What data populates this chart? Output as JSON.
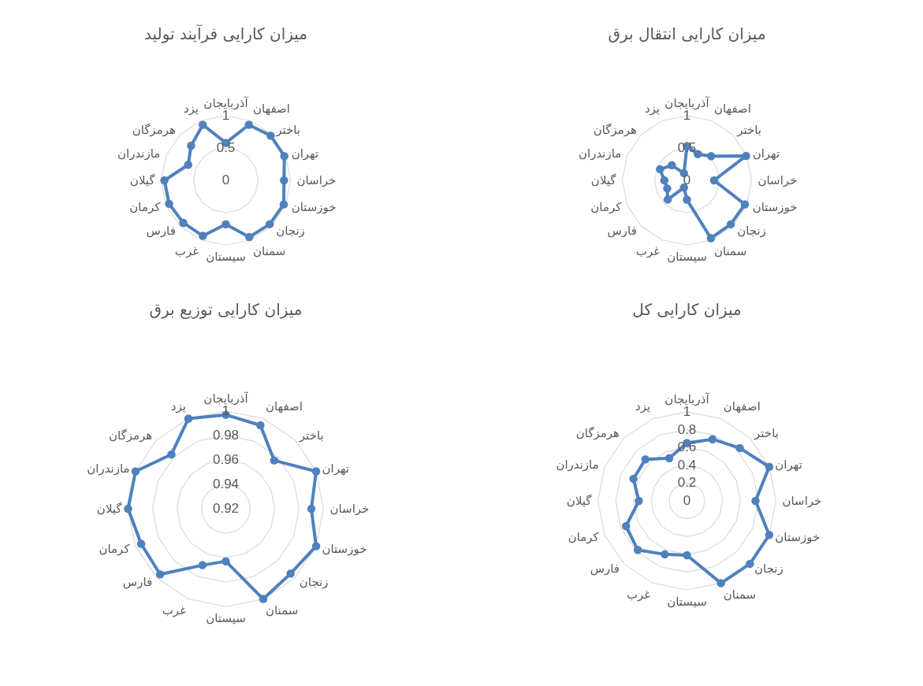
{
  "chart_data": [
    {
      "type": "radar",
      "title": "میزان کارایی فرآیند تولید",
      "categories": [
        "آذربایجان",
        "اصفهان",
        "باختر",
        "تهران",
        "خراسان",
        "خوزستان",
        "زنجان",
        "سمنان",
        "سیستان",
        "غرب",
        "فارس",
        "کرمان",
        "گیلان",
        "مازندران",
        "هرمزگان",
        "یزد"
      ],
      "series": [
        {
          "color": "#4f81bd",
          "values": [
            0.58,
            0.93,
            0.98,
            0.98,
            0.9,
            0.97,
            0.96,
            0.95,
            0.68,
            0.93,
            0.93,
            0.95,
            0.95,
            0.63,
            0.76,
            0.93
          ]
        }
      ],
      "ylim": [
        0,
        1
      ],
      "yticks": [
        0,
        0.5,
        1
      ],
      "grid": true,
      "marker": "circle"
    },
    {
      "type": "radar",
      "title": "میزان کارایی انتقال برق",
      "categories": [
        "آذربایجان",
        "اصفهان",
        "باختر",
        "تهران",
        "خراسان",
        "خوزستان",
        "زنجان",
        "سمنان",
        "سیستان",
        "غرب",
        "فارس",
        "کرمان",
        "گیلان",
        "مازندران",
        "هرمزگان",
        "یزد"
      ],
      "series": [
        {
          "color": "#4f81bd",
          "values": [
            0.53,
            0.44,
            0.53,
            0.99,
            0.42,
            0.97,
            0.96,
            0.97,
            0.3,
            0.12,
            0.42,
            0.33,
            0.35,
            0.45,
            0.33,
            0.12
          ]
        }
      ],
      "ylim": [
        0,
        1
      ],
      "yticks": [
        0,
        0.5,
        1
      ],
      "grid": true,
      "marker": "circle"
    },
    {
      "type": "radar",
      "title": "میزان کارایی توزیع برق",
      "categories": [
        "آذربایجان",
        "اصفهان",
        "باختر",
        "تهران",
        "خراسان",
        "خوزستان",
        "زنجان",
        "سمنان",
        "سیستان",
        "غرب",
        "فارس",
        "کرمان",
        "گیلان",
        "مازندران",
        "هرمزگان",
        "یزد"
      ],
      "series": [
        {
          "color": "#4f81bd",
          "values": [
            0.997,
            0.994,
            0.976,
            1,
            0.99,
            1,
            0.995,
            1,
            0.963,
            0.97,
            0.996,
            0.995,
            1,
            1,
            0.983,
            1
          ]
        }
      ],
      "ylim": [
        0.92,
        1
      ],
      "yticks": [
        0.92,
        0.94,
        0.96,
        0.98,
        1
      ],
      "grid": true,
      "marker": "circle"
    },
    {
      "type": "radar",
      "title": "میزان کارایی کل",
      "categories": [
        "آذربایجان",
        "اصفهان",
        "باختر",
        "تهران",
        "خراسان",
        "خوزستان",
        "زنجان",
        "سمنان",
        "سیستان",
        "غرب",
        "فارس",
        "کرمان",
        "گیلان",
        "مازندران",
        "هرمزگان",
        "یزد"
      ],
      "series": [
        {
          "color": "#4f81bd",
          "values": [
            0.65,
            0.75,
            0.84,
            1,
            0.77,
            1,
            1,
            1,
            0.61,
            0.65,
            0.78,
            0.74,
            0.54,
            0.65,
            0.66,
            0.52
          ]
        }
      ],
      "ylim": [
        0,
        1
      ],
      "yticks": [
        0,
        0.2,
        0.4,
        0.6,
        0.8,
        1
      ],
      "grid": true,
      "marker": "circle"
    }
  ]
}
